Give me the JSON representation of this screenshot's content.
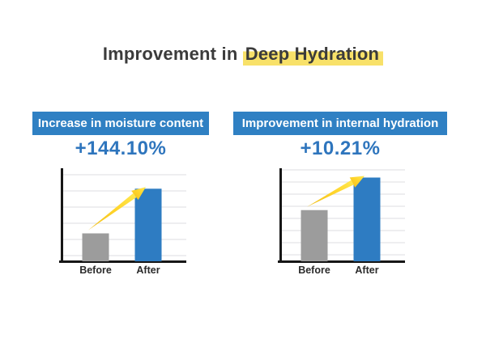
{
  "title": {
    "prefix": "Improvement in ",
    "highlighted": "Deep Hydration",
    "highlight_color": "#F8E169"
  },
  "colors": {
    "banner_blue": "#2F80C3",
    "percentage_blue": "#2E75BD",
    "bar_blue": "#2E7CC2",
    "bar_gray": "#9C9C9C",
    "arrow_gold": "#EFBE1D",
    "arrow_yellow": "#FFE952",
    "axis_black": "#161616",
    "gridline_gray": "#E4E4E6",
    "title_dark": "#3B3B3B",
    "background": "#FFFFFF"
  },
  "panels": [
    {
      "banner": "Increase in moisture content",
      "percentage": "+144.10%"
    },
    {
      "banner": "Improvement in internal hydration",
      "percentage": "+10.21%"
    }
  ],
  "chart_data": [
    {
      "type": "bar",
      "title": "Increase in moisture content",
      "headline_value": "+144.10%",
      "categories": [
        "Before",
        "After"
      ],
      "values": [
        30,
        78
      ],
      "value_unit": "relative-bar-height-percent (no numeric axis shown)",
      "series_colors": [
        "bar_gray",
        "bar_blue"
      ],
      "xlabel": "",
      "ylabel": "",
      "ylim": [
        0,
        100
      ],
      "grid": true,
      "gridlines": {
        "start": 14,
        "step": 20,
        "count": 6
      },
      "annotation": "yellow-increase-arrow from Before bar top to After bar top",
      "legend": "none"
    },
    {
      "type": "bar",
      "title": "Improvement in internal hydration",
      "headline_value": "+10.21%",
      "categories": [
        "Before",
        "After"
      ],
      "values": [
        55,
        90
      ],
      "value_unit": "relative-bar-height-percent (no numeric axis shown)",
      "series_colors": [
        "bar_gray",
        "bar_blue"
      ],
      "xlabel": "",
      "ylabel": "",
      "ylim": [
        0,
        100
      ],
      "grid": true,
      "gridlines": {
        "start": 8,
        "step": 15,
        "count": 8
      },
      "annotation": "yellow-increase-arrow from Before bar top to After bar top",
      "legend": "none"
    }
  ]
}
